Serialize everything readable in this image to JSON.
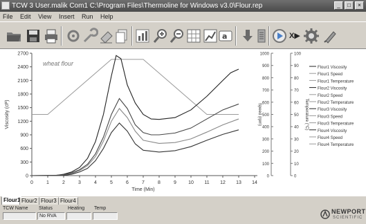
{
  "window": {
    "title": "TCW 3 User.malik Com1 C:\\Program Files\\Thermoline for Windows v3.0\\Flour.rep",
    "buttons": [
      "_",
      "□",
      "×"
    ]
  },
  "menu": [
    "File",
    "Edit",
    "View",
    "Insert",
    "Run",
    "Help"
  ],
  "toolbar": {
    "icons": [
      "open-folder-icon",
      "save-icon",
      "print-icon",
      "settings-icon",
      "wrench-icon",
      "erase-icon",
      "copy-icon",
      "chart-icon",
      "zoom-in-icon",
      "zoom-out-icon",
      "grid-icon",
      "axes-icon",
      "text-icon",
      "download-icon",
      "list-icon",
      "record-icon",
      "run-icon",
      "gear-icon",
      "pen-icon"
    ],
    "run_label": "X▶",
    "colors": {
      "record": "#4a80c8",
      "icon_gray": "#8a8a8a",
      "icon_dark": "#3a3a3a"
    }
  },
  "chart_data": {
    "type": "line",
    "title": "wheat flour",
    "xlabel": "Time (Min)",
    "ylabel_left": "Viscosity (cP)",
    "ylabel_right1": "Speed (rpm)",
    "ylabel_right2": "Temperature (°C)",
    "xlim": [
      0,
      14
    ],
    "ylim_left": [
      0,
      2700
    ],
    "ylim_right1": [
      0,
      1000
    ],
    "ylim_right2": [
      0,
      100
    ],
    "x_ticks": [
      "0",
      "1",
      "2",
      "3",
      "4",
      "5",
      "6",
      "7",
      "8",
      "9",
      "10",
      "11",
      "12",
      "13",
      "14"
    ],
    "y_ticks_left": [
      "0",
      "300",
      "600",
      "900",
      "1200",
      "1500",
      "1800",
      "2100",
      "2400",
      "2700"
    ],
    "y_ticks_right1": [
      "0",
      "100",
      "200",
      "300",
      "400",
      "500",
      "600",
      "700",
      "800",
      "900",
      "1000"
    ],
    "y_ticks_right2": [
      "0",
      "10",
      "20",
      "30",
      "40",
      "50",
      "60",
      "70",
      "80",
      "90",
      "100"
    ],
    "grid": false,
    "legend_placement": "right",
    "legend": [
      "Flour1 Viscosity",
      "Flour1 Speed",
      "Flour1 Temperature",
      "Flour2 Viscosity",
      "Flour2 Speed",
      "Flour2 Temperature",
      "Flour3 Viscosity",
      "Flour3 Speed",
      "Flour3 Temperature",
      "Flour4 Viscosity",
      "Flour4 Speed",
      "Flour4 Temperature"
    ],
    "temperature": {
      "x": [
        0,
        0.1,
        0.3,
        1,
        5,
        7,
        11,
        13
      ],
      "y": [
        50,
        50,
        50,
        50,
        95,
        95,
        50,
        50
      ]
    },
    "viscosity_series": [
      {
        "x": [
          0,
          1,
          1.5,
          2,
          2.5,
          3,
          3.5,
          4,
          4.5,
          5,
          5.3,
          5.6,
          6,
          6.5,
          7,
          7.5,
          8,
          9,
          10,
          11,
          12,
          12.5,
          13
        ],
        "y": [
          0,
          0,
          5,
          30,
          80,
          180,
          380,
          750,
          1350,
          2200,
          2650,
          2580,
          2000,
          1600,
          1350,
          1250,
          1240,
          1280,
          1450,
          1750,
          2100,
          2270,
          2350
        ]
      },
      {
        "x": [
          0,
          1.5,
          2,
          2.5,
          3,
          3.5,
          4,
          4.5,
          5,
          5.5,
          6,
          6.5,
          7,
          7.5,
          8,
          9,
          10,
          11,
          12,
          13
        ],
        "y": [
          0,
          5,
          20,
          60,
          130,
          250,
          480,
          850,
          1350,
          1700,
          1480,
          1120,
          950,
          900,
          900,
          940,
          1050,
          1250,
          1450,
          1580
        ]
      },
      {
        "x": [
          0,
          2,
          2.5,
          3,
          3.5,
          4,
          4.5,
          5,
          5.5,
          6,
          6.5,
          7,
          8,
          9,
          10,
          11,
          12,
          13
        ],
        "y": [
          0,
          10,
          40,
          110,
          220,
          420,
          760,
          1200,
          1480,
          1280,
          980,
          780,
          710,
          730,
          810,
          960,
          1120,
          1250
        ]
      },
      {
        "x": [
          0,
          2,
          2.5,
          3,
          3.5,
          4,
          4.5,
          5,
          5.5,
          6,
          6.5,
          7,
          8,
          9,
          10,
          11,
          12,
          13
        ],
        "y": [
          0,
          5,
          30,
          80,
          160,
          330,
          600,
          950,
          1160,
          980,
          700,
          560,
          520,
          550,
          640,
          780,
          910,
          1010
        ]
      }
    ],
    "series_colors": [
      "#222222",
      "#444444",
      "#888888",
      "#333333"
    ]
  },
  "tabs": [
    "Flour1",
    "Flour2",
    "Flour3",
    "Flour4"
  ],
  "status": {
    "headers": [
      "TCW Name",
      "Status",
      "Heating",
      "Temp"
    ],
    "values": [
      "",
      "No RVA",
      "",
      ""
    ]
  },
  "logo": {
    "name": "NEWPORT",
    "sub": "SCIENTIFIC"
  }
}
